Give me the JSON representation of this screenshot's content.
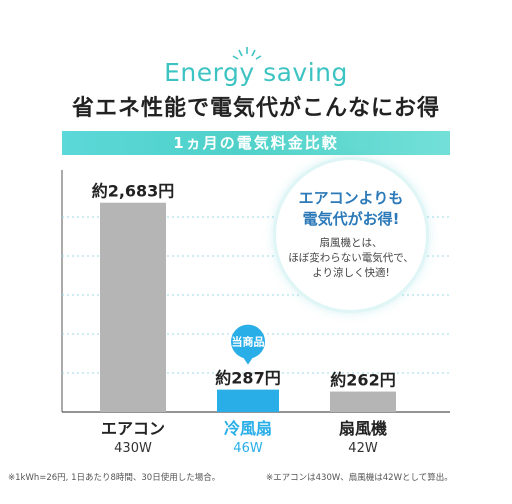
{
  "header": {
    "english_title": "Energy saving",
    "headline": "省エネ性能で電気代がこんなにお得",
    "banner": "1ヵ月の電気料金比較"
  },
  "callout": {
    "highlight_line1": "エアコンよりも",
    "highlight_line2": "電気代がお得!",
    "body_line1": "扇風機とは、",
    "body_line2": "ほぼ変わらない電気代で、",
    "body_line3": "より涼しく快適!"
  },
  "badge": "当商品",
  "footnotes": {
    "left": "※1kWh=26円, 1日あたり8時間、30日使用した場合。",
    "right": "※エアコンは430W、扇風機は42Wとして算出。"
  },
  "colors": {
    "accent": "#3ec3c3",
    "product_bar": "#29aee8",
    "other_bar": "#b5b5b5",
    "headline_blue": "#2b79b8"
  },
  "chart_data": {
    "type": "bar",
    "categories": [
      "エアコン",
      "冷風扇",
      "扇風機"
    ],
    "wattage": [
      "430W",
      "46W",
      "42W"
    ],
    "values": [
      2683,
      287,
      262
    ],
    "value_labels": [
      "約2,683円",
      "約287円",
      "約262円"
    ],
    "highlight_index": 1,
    "ylim": [
      0,
      3000
    ],
    "grid": true
  }
}
